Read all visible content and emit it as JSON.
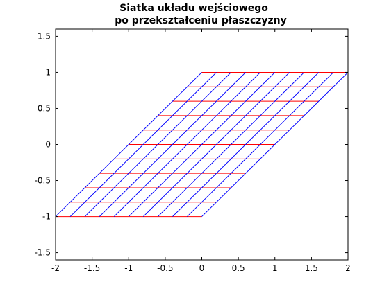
{
  "chart_data": {
    "type": "line",
    "title_lines": [
      "Siatka układu wejściowego",
      "po przekształceniu płaszczyzny"
    ],
    "xlabel": "",
    "ylabel": "",
    "xlim": [
      -2,
      2
    ],
    "ylim": [
      -1.6,
      1.6
    ],
    "x_ticks": [
      -2,
      -1.5,
      -1,
      -0.5,
      0,
      0.5,
      1,
      1.5,
      2
    ],
    "x_tick_labels": [
      "-2",
      "-1.5",
      "-1",
      "-0.5",
      "0",
      "0.5",
      "1",
      "1.5",
      "2"
    ],
    "y_ticks": [
      -1.5,
      -1,
      -0.5,
      0,
      0.5,
      1,
      1.5
    ],
    "y_tick_labels": [
      "-1.5",
      "-1",
      "-0.5",
      "0",
      "0.5",
      "1",
      "1.5"
    ],
    "grid": false,
    "transform": {
      "shear_x": 1
    },
    "grid_lines": {
      "param_min": -1,
      "param_max": 1,
      "count": 11,
      "horizontal_color": "#ff0000",
      "vertical_color": "#0000ff"
    },
    "colors": {
      "axes": "#000000",
      "background": "#ffffff"
    }
  }
}
